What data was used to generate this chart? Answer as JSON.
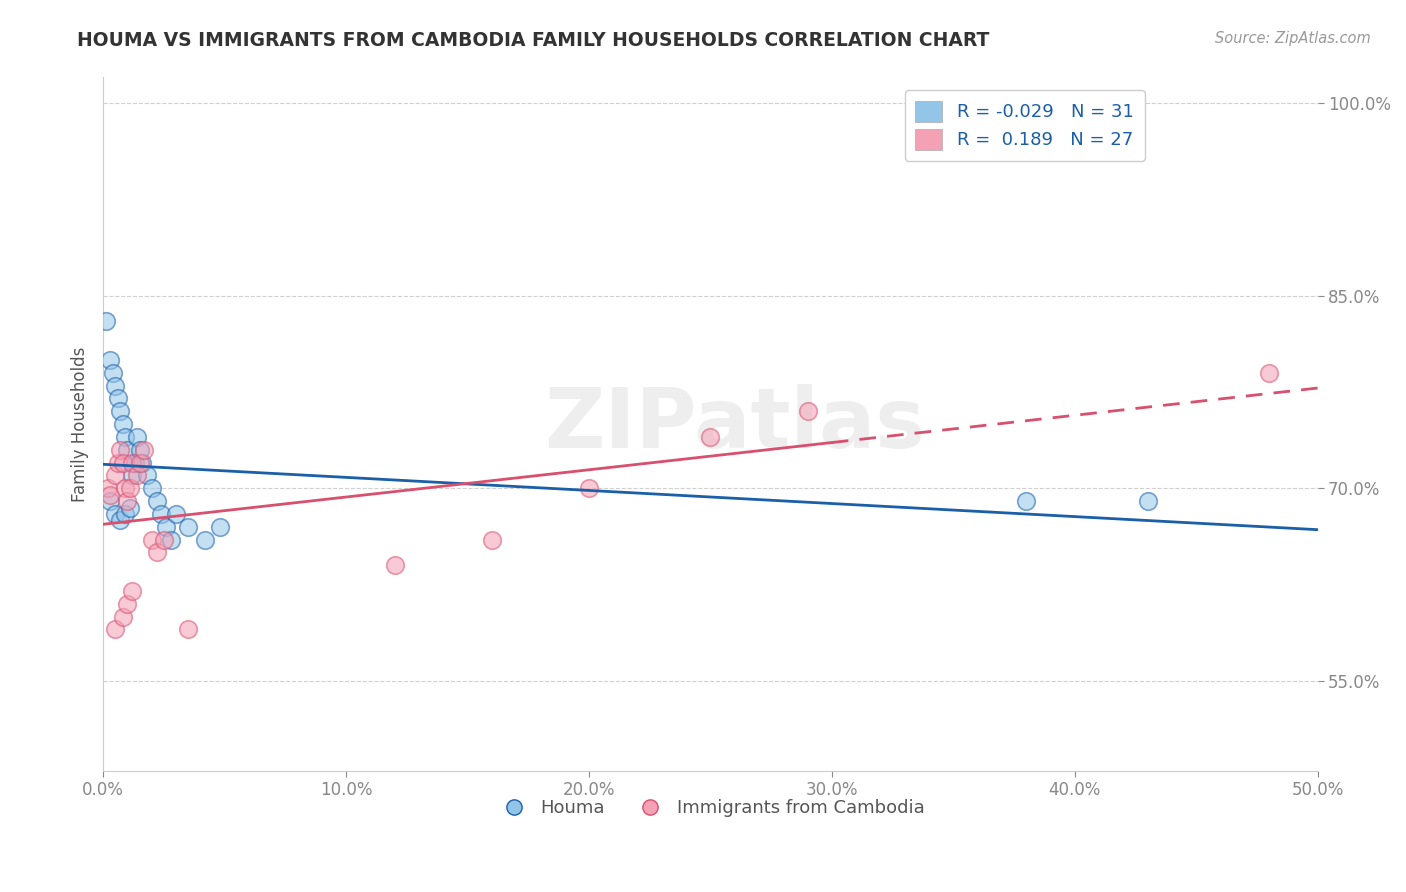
{
  "title": "HOUMA VS IMMIGRANTS FROM CAMBODIA FAMILY HOUSEHOLDS CORRELATION CHART",
  "source": "Source: ZipAtlas.com",
  "xlabel": "",
  "ylabel": "Family Households",
  "xmin": 0.0,
  "xmax": 0.5,
  "ymin": 0.48,
  "ymax": 1.02,
  "yticks": [
    0.55,
    0.7,
    0.85,
    1.0
  ],
  "ytick_labels": [
    "55.0%",
    "70.0%",
    "85.0%",
    "100.0%"
  ],
  "xticks": [
    0.0,
    0.1,
    0.2,
    0.3,
    0.4,
    0.5
  ],
  "xtick_labels": [
    "0.0%",
    "10.0%",
    "20.0%",
    "30.0%",
    "40.0%",
    "50.0%"
  ],
  "houma_R": -0.029,
  "houma_N": 31,
  "cambodia_R": 0.189,
  "cambodia_N": 27,
  "houma_color": "#92c5e8",
  "cambodia_color": "#f4a0b5",
  "houma_line_color": "#1a5fa8",
  "cambodia_line_color": "#d94f6e",
  "legend_R_color": "#1a5fa8",
  "houma_x": [
    0.001,
    0.003,
    0.004,
    0.005,
    0.006,
    0.007,
    0.008,
    0.009,
    0.01,
    0.012,
    0.013,
    0.014,
    0.015,
    0.016,
    0.018,
    0.02,
    0.022,
    0.024,
    0.026,
    0.028,
    0.03,
    0.035,
    0.042,
    0.048,
    0.003,
    0.005,
    0.007,
    0.009,
    0.011,
    0.38,
    0.43
  ],
  "houma_y": [
    0.83,
    0.8,
    0.79,
    0.78,
    0.77,
    0.76,
    0.75,
    0.74,
    0.73,
    0.71,
    0.72,
    0.74,
    0.73,
    0.72,
    0.71,
    0.7,
    0.69,
    0.68,
    0.67,
    0.66,
    0.68,
    0.67,
    0.66,
    0.67,
    0.69,
    0.68,
    0.675,
    0.68,
    0.685,
    0.69,
    0.69
  ],
  "cambodia_x": [
    0.002,
    0.003,
    0.005,
    0.006,
    0.007,
    0.008,
    0.009,
    0.01,
    0.011,
    0.012,
    0.014,
    0.015,
    0.017,
    0.02,
    0.022,
    0.025,
    0.005,
    0.008,
    0.01,
    0.012,
    0.035,
    0.12,
    0.16,
    0.2,
    0.25,
    0.29,
    0.48
  ],
  "cambodia_y": [
    0.7,
    0.695,
    0.71,
    0.72,
    0.73,
    0.72,
    0.7,
    0.69,
    0.7,
    0.72,
    0.71,
    0.72,
    0.73,
    0.66,
    0.65,
    0.66,
    0.59,
    0.6,
    0.61,
    0.62,
    0.59,
    0.64,
    0.66,
    0.7,
    0.74,
    0.76,
    0.79
  ],
  "watermark": "ZIPatlas",
  "background_color": "#ffffff",
  "grid_color": "#d0d0d0"
}
